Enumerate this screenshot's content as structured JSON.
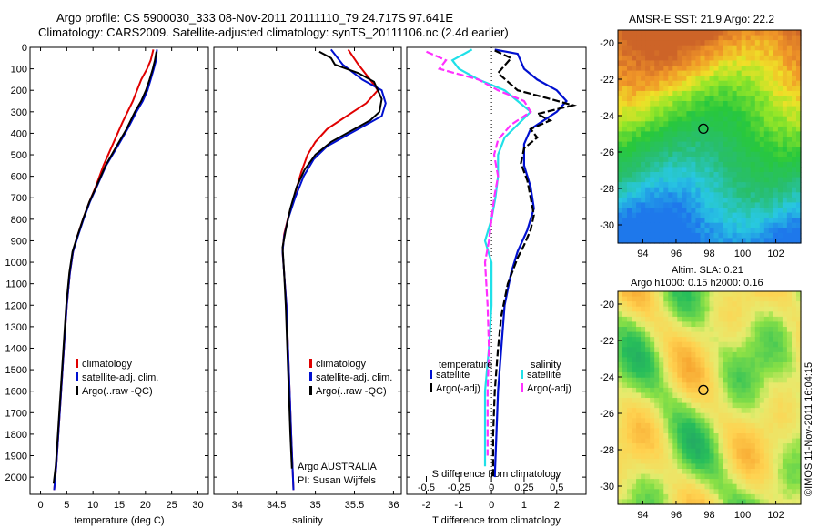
{
  "title_line1": "Argo profile: CS 5900030_333 08-Nov-2011 20111110_79 24.717S 97.641E",
  "title_line2": "Climatology: CARS2009. Satellite-adjusted climatology: synTS_20111106.nc (2.4d earlier)",
  "sst_title": "AMSR-E SST: 21.9 Argo: 22.2",
  "sla_title1": "Altim. SLA: 0.21",
  "sla_title2": "Argo h1000: 0.15 h2000: 0.16",
  "side_stamp": "©IMOS 11-Nov-2011 16:04:15",
  "argo_label1": "Argo AUSTRALIA",
  "argo_label2": "PI: Susan Wijffels",
  "colors": {
    "climatology": "#e00000",
    "satellite": "#0010d0",
    "argo": "#000000",
    "s_satellite": "#20e0e8",
    "s_argo": "#ff30ff"
  },
  "chart_data": [
    {
      "type": "line",
      "xlabel": "temperature (deg C)",
      "ylabel": "",
      "xlim": [
        -2,
        32
      ],
      "ylim": [
        2080,
        0
      ],
      "xticks": [
        "0",
        "5",
        "10",
        "15",
        "20",
        "25",
        "30"
      ],
      "yticks": [
        "0",
        "100",
        "200",
        "300",
        "400",
        "500",
        "600",
        "700",
        "800",
        "900",
        "1000",
        "1100",
        "1200",
        "1300",
        "1400",
        "1500",
        "1600",
        "1700",
        "1800",
        "1900",
        "2000"
      ],
      "legend": [
        "climatology",
        "satellite-adj. clim.",
        "Argo(..raw -QC)"
      ],
      "legend_position": "lower-right",
      "series": [
        {
          "name": "climatology",
          "color": "red",
          "points": [
            [
              21.5,
              10
            ],
            [
              21,
              60
            ],
            [
              20.3,
              100
            ],
            [
              19.2,
              150
            ],
            [
              17.6,
              250
            ],
            [
              15.6,
              350
            ],
            [
              13.8,
              450
            ],
            [
              12,
              550
            ],
            [
              10.5,
              650
            ],
            [
              9.3,
              720
            ],
            [
              8.1,
              800
            ],
            [
              7,
              880
            ],
            [
              6.2,
              950
            ],
            [
              5.6,
              1050
            ],
            [
              5,
              1200
            ],
            [
              4.6,
              1350
            ],
            [
              4.2,
              1500
            ],
            [
              3.8,
              1650
            ],
            [
              3.4,
              1800
            ],
            [
              3,
              1950
            ],
            [
              2.6,
              2060
            ]
          ]
        },
        {
          "name": "satellite-adj. clim.",
          "color": "blue",
          "points": [
            [
              22.2,
              10
            ],
            [
              22,
              60
            ],
            [
              21.6,
              100
            ],
            [
              21,
              150
            ],
            [
              20.4,
              200
            ],
            [
              19.5,
              250
            ],
            [
              18.3,
              300
            ],
            [
              16.6,
              380
            ],
            [
              14.7,
              460
            ],
            [
              12.5,
              550
            ],
            [
              10.7,
              650
            ],
            [
              9.4,
              720
            ],
            [
              8.2,
              800
            ],
            [
              7.1,
              880
            ],
            [
              6.2,
              950
            ],
            [
              5.6,
              1050
            ],
            [
              5,
              1200
            ],
            [
              4.6,
              1350
            ],
            [
              4.2,
              1500
            ],
            [
              3.8,
              1650
            ],
            [
              3.4,
              1800
            ],
            [
              3,
              1950
            ],
            [
              2.6,
              2060
            ]
          ]
        },
        {
          "name": "Argo(..raw -QC)",
          "color": "black",
          "points": [
            [
              22.1,
              20
            ],
            [
              21.8,
              60
            ],
            [
              21.4,
              100
            ],
            [
              20.8,
              150
            ],
            [
              20.1,
              200
            ],
            [
              19.2,
              250
            ],
            [
              18,
              300
            ],
            [
              16.4,
              380
            ],
            [
              14.5,
              460
            ],
            [
              12.4,
              550
            ],
            [
              10.6,
              650
            ],
            [
              9.3,
              720
            ],
            [
              8.1,
              800
            ],
            [
              7,
              880
            ],
            [
              6.1,
              950
            ],
            [
              5.5,
              1050
            ],
            [
              4.9,
              1200
            ],
            [
              4.5,
              1350
            ],
            [
              4.1,
              1500
            ],
            [
              3.7,
              1650
            ],
            [
              3.3,
              1800
            ],
            [
              2.9,
              1950
            ],
            [
              2.5,
              2030
            ]
          ]
        }
      ]
    },
    {
      "type": "line",
      "xlabel": "salinity",
      "xlim": [
        33.7,
        36.1
      ],
      "ylim": [
        2080,
        0
      ],
      "xticks": [
        "34",
        "34.5",
        "35",
        "35.5",
        "36"
      ],
      "legend": [
        "climatology",
        "satellite-adj. clim.",
        "Argo(..raw -QC)"
      ],
      "legend_position": "lower-right",
      "series": [
        {
          "name": "climatology",
          "color": "red",
          "points": [
            [
              35.42,
              10
            ],
            [
              35.55,
              80
            ],
            [
              35.7,
              150
            ],
            [
              35.8,
              200
            ],
            [
              35.65,
              260
            ],
            [
              35.4,
              320
            ],
            [
              35.15,
              380
            ],
            [
              35,
              440
            ],
            [
              34.9,
              500
            ],
            [
              34.82,
              580
            ],
            [
              34.74,
              680
            ],
            [
              34.66,
              780
            ],
            [
              34.6,
              870
            ],
            [
              34.58,
              950
            ],
            [
              34.6,
              1050
            ],
            [
              34.63,
              1200
            ],
            [
              34.65,
              1400
            ],
            [
              34.67,
              1600
            ],
            [
              34.69,
              1800
            ],
            [
              34.72,
              2060
            ]
          ]
        },
        {
          "name": "satellite-adj. clim.",
          "color": "blue",
          "points": [
            [
              35.2,
              10
            ],
            [
              35.35,
              80
            ],
            [
              35.6,
              150
            ],
            [
              35.85,
              200
            ],
            [
              35.9,
              260
            ],
            [
              35.85,
              320
            ],
            [
              35.65,
              360
            ],
            [
              35.4,
              410
            ],
            [
              35.15,
              460
            ],
            [
              34.98,
              520
            ],
            [
              34.85,
              600
            ],
            [
              34.74,
              700
            ],
            [
              34.65,
              800
            ],
            [
              34.6,
              880
            ],
            [
              34.58,
              950
            ],
            [
              34.6,
              1050
            ],
            [
              34.63,
              1200
            ],
            [
              34.65,
              1400
            ],
            [
              34.67,
              1600
            ],
            [
              34.69,
              1800
            ],
            [
              34.72,
              2060
            ]
          ]
        },
        {
          "name": "Argo(..raw -QC)",
          "color": "black",
          "points": [
            [
              35.05,
              20
            ],
            [
              35.2,
              50
            ],
            [
              35.25,
              80
            ],
            [
              35.55,
              120
            ],
            [
              35.75,
              160
            ],
            [
              35.8,
              200
            ],
            [
              35.85,
              240
            ],
            [
              35.82,
              300
            ],
            [
              35.7,
              340
            ],
            [
              35.45,
              390
            ],
            [
              35.2,
              440
            ],
            [
              35,
              500
            ],
            [
              34.86,
              570
            ],
            [
              34.76,
              650
            ],
            [
              34.68,
              750
            ],
            [
              34.62,
              850
            ],
            [
              34.58,
              930
            ],
            [
              34.6,
              1050
            ],
            [
              34.62,
              1200
            ],
            [
              34.64,
              1400
            ],
            [
              34.66,
              1600
            ],
            [
              34.68,
              1800
            ],
            [
              34.7,
              1960
            ]
          ]
        }
      ]
    },
    {
      "type": "line",
      "xlabel": "T difference from climatology",
      "xlabel2": "S difference from climatology",
      "xlim": [
        -2.6,
        2.9
      ],
      "xlim2": [
        -0.65,
        0.725
      ],
      "ylim": [
        2080,
        0
      ],
      "xticks": [
        "-2",
        "-1",
        "0",
        "1",
        "2"
      ],
      "xticks2": [
        "-0.5",
        "-0.25",
        "0",
        "0.25",
        "0.5"
      ],
      "legend": [
        "temperature",
        "satellite",
        "Argo(-adj)",
        "salinity",
        "satellite",
        "Argo(-adj)"
      ],
      "legend_position": "lower",
      "series": [
        {
          "name": "satellite",
          "group": "temperature",
          "color": "blue",
          "points": [
            [
              0.1,
              10
            ],
            [
              0.8,
              30
            ],
            [
              1,
              100
            ],
            [
              1.4,
              150
            ],
            [
              2,
              200
            ],
            [
              2.3,
              250
            ],
            [
              2,
              300
            ],
            [
              1.6,
              340
            ],
            [
              1.2,
              380
            ],
            [
              1,
              450
            ],
            [
              1,
              550
            ],
            [
              1.2,
              650
            ],
            [
              1.3,
              750
            ],
            [
              1.1,
              850
            ],
            [
              0.8,
              950
            ],
            [
              0.6,
              1050
            ],
            [
              0.4,
              1200
            ],
            [
              0.3,
              1400
            ],
            [
              0.2,
              1600
            ],
            [
              0.15,
              1800
            ],
            [
              0.1,
              2000
            ]
          ]
        },
        {
          "name": "Argo(-adj)",
          "group": "temperature",
          "color": "black",
          "points": [
            [
              0.1,
              15
            ],
            [
              0.6,
              50
            ],
            [
              0.2,
              120
            ],
            [
              0.8,
              200
            ],
            [
              1.8,
              240
            ],
            [
              2.5,
              270
            ],
            [
              1.4,
              310
            ],
            [
              1.8,
              340
            ],
            [
              1.2,
              380
            ],
            [
              1.4,
              420
            ],
            [
              1,
              470
            ],
            [
              0.9,
              540
            ],
            [
              1.1,
              620
            ],
            [
              1.2,
              700
            ],
            [
              1.3,
              780
            ],
            [
              1.2,
              850
            ],
            [
              1,
              920
            ],
            [
              0.8,
              980
            ],
            [
              0.5,
              1100
            ],
            [
              0.3,
              1250
            ],
            [
              0.2,
              1400
            ],
            [
              0.1,
              1600
            ],
            [
              0.05,
              1800
            ],
            [
              0.05,
              2000
            ]
          ]
        },
        {
          "name": "satellite",
          "group": "salinity",
          "color": "cyan",
          "points": [
            [
              -0.15,
              10
            ],
            [
              -0.3,
              60
            ],
            [
              -0.25,
              100
            ],
            [
              -0.1,
              150
            ],
            [
              0.1,
              200
            ],
            [
              0.2,
              250
            ],
            [
              0.3,
              300
            ],
            [
              0.2,
              360
            ],
            [
              0.1,
              420
            ],
            [
              0.05,
              500
            ],
            [
              0.05,
              600
            ],
            [
              0.03,
              700
            ],
            [
              0,
              800
            ],
            [
              -0.05,
              900
            ],
            [
              0,
              1000
            ],
            [
              0,
              1200
            ],
            [
              -0.02,
              1400
            ],
            [
              -0.05,
              1600
            ],
            [
              -0.05,
              1800
            ],
            [
              -0.05,
              1950
            ]
          ]
        },
        {
          "name": "Argo(-adj)",
          "group": "salinity",
          "color": "magenta",
          "points": [
            [
              -0.5,
              20
            ],
            [
              -0.35,
              60
            ],
            [
              -0.4,
              100
            ],
            [
              -0.1,
              150
            ],
            [
              0.05,
              200
            ],
            [
              0.25,
              250
            ],
            [
              0.3,
              300
            ],
            [
              0.15,
              360
            ],
            [
              0.05,
              430
            ],
            [
              0.02,
              500
            ],
            [
              0.05,
              600
            ],
            [
              0.02,
              700
            ],
            [
              0,
              800
            ],
            [
              -0.02,
              900
            ],
            [
              -0.05,
              1000
            ],
            [
              -0.03,
              1200
            ],
            [
              -0.02,
              1400
            ],
            [
              -0.03,
              1600
            ],
            [
              -0.03,
              1800
            ],
            [
              -0.03,
              1900
            ]
          ]
        }
      ]
    },
    {
      "type": "heatmap",
      "title": "AMSR-E SST: 21.9 Argo: 22.2",
      "xticks": [
        "94",
        "96",
        "98",
        "100",
        "102"
      ],
      "yticks": [
        "-20",
        "-22",
        "-24",
        "-26",
        "-28",
        "-30"
      ],
      "xlim": [
        92.5,
        103.5
      ],
      "ylim": [
        -31,
        -19.3
      ],
      "marker": [
        97.64,
        -24.72
      ]
    },
    {
      "type": "heatmap",
      "title": "Altim. SLA: 0.21",
      "xticks": [
        "94",
        "96",
        "98",
        "100",
        "102"
      ],
      "yticks": [
        "-20",
        "-22",
        "-24",
        "-26",
        "-28",
        "-30"
      ],
      "xlim": [
        92.5,
        103.5
      ],
      "ylim": [
        -31,
        -19.3
      ],
      "marker": [
        97.64,
        -24.72
      ]
    }
  ]
}
